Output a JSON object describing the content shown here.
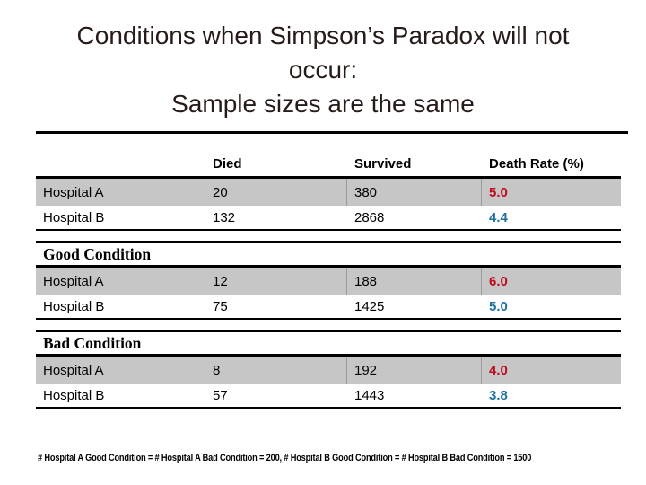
{
  "title": {
    "line1": "Conditions when Simpson’s Paradox will not",
    "line2": "occur:",
    "line3": "Sample sizes are the same"
  },
  "table": {
    "headers": [
      "",
      "Died",
      "Survived",
      "Death Rate (%)"
    ],
    "sections": [
      {
        "label": "",
        "rows": [
          {
            "name": "Hospital A",
            "died": "20",
            "survived": "380",
            "death_rate": "5.0"
          },
          {
            "name": "Hospital B",
            "died": "132",
            "survived": "2868",
            "death_rate": "4.4"
          }
        ]
      },
      {
        "label": "Good Condition",
        "rows": [
          {
            "name": "Hospital A",
            "died": "12",
            "survived": "188",
            "death_rate": "6.0"
          },
          {
            "name": "Hospital B",
            "died": "75",
            "survived": "1425",
            "death_rate": "5.0"
          }
        ]
      },
      {
        "label": "Bad Condition",
        "rows": [
          {
            "name": "Hospital A",
            "died": "8",
            "survived": "192",
            "death_rate": "4.0"
          },
          {
            "name": "Hospital B",
            "died": "57",
            "survived": "1443",
            "death_rate": "3.8"
          }
        ]
      }
    ]
  },
  "footnote": "# Hospital A Good Condition = # Hospital A Bad Condition = 200, # Hospital B Good Condition = # Hospital B Bad Condition = 1500",
  "colors": {
    "hospital_a_rate": "#c00a1e",
    "hospital_b_rate": "#1f719f",
    "highlight_row_background": "#c6c6c6",
    "rule_black": "#000000"
  }
}
